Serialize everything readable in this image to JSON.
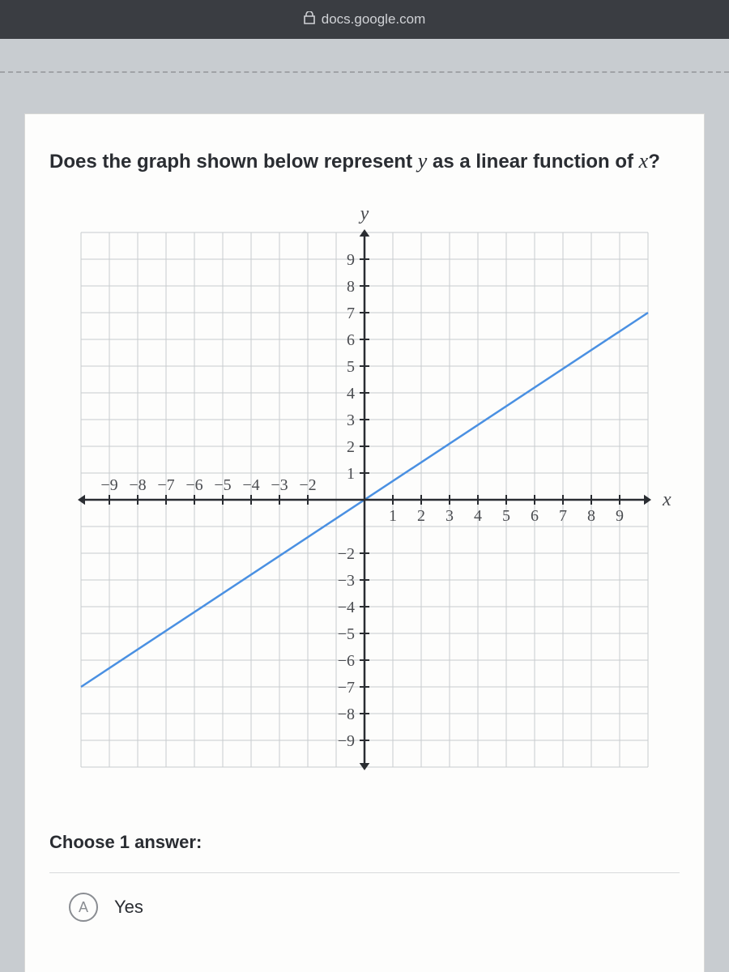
{
  "browser": {
    "url": "docs.google.com"
  },
  "question": {
    "prefix": "Does the graph shown below represent ",
    "var1": "y",
    "mid": " as a linear function of ",
    "var2": "x",
    "suffix": "?"
  },
  "chart": {
    "type": "line",
    "xlim": [
      -10,
      10
    ],
    "ylim": [
      -10,
      10
    ],
    "xticks": [
      -9,
      -8,
      -7,
      -6,
      -5,
      -4,
      -3,
      -2,
      1,
      2,
      3,
      4,
      5,
      6,
      7,
      8,
      9
    ],
    "yticks_pos": [
      1,
      2,
      3,
      4,
      5,
      6,
      7,
      8,
      9
    ],
    "yticks_neg": [
      -2,
      -3,
      -4,
      -5,
      -6,
      -7,
      -8,
      -9
    ],
    "xlabel": "x",
    "ylabel": "y",
    "grid_color": "#c8cbce",
    "axis_color": "#2a2d32",
    "line_color": "#4a90e2",
    "background_color": "#fdfdfc",
    "line_width": 2.5,
    "tick_fontsize": 20,
    "label_fontsize": 24,
    "line_points": [
      [
        -10,
        -7
      ],
      [
        10,
        7
      ]
    ],
    "line_slope": 0.7,
    "line_intercept": 0
  },
  "answer": {
    "prompt": "Choose 1 answer:",
    "options": [
      {
        "letter": "A",
        "text": "Yes"
      }
    ]
  }
}
